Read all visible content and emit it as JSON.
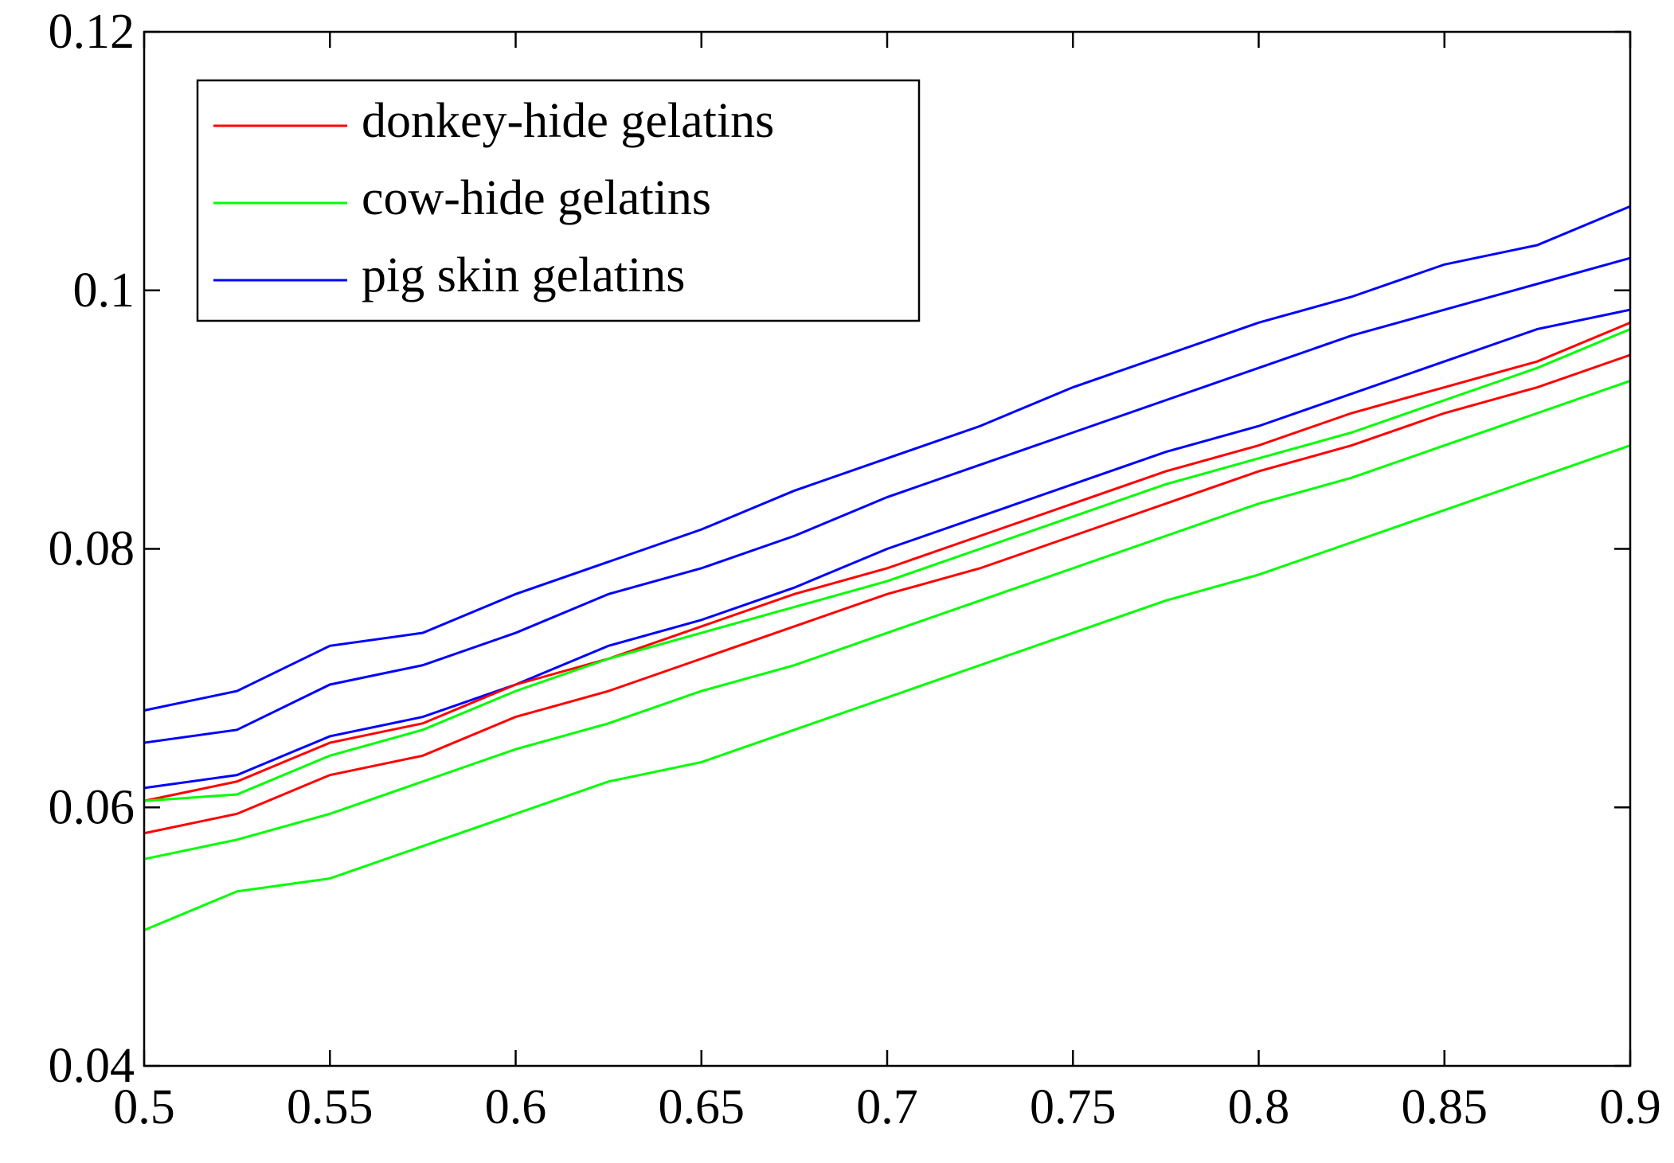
{
  "chart_data": {
    "type": "line",
    "x": [
      0.5,
      0.525,
      0.55,
      0.575,
      0.6,
      0.625,
      0.65,
      0.675,
      0.7,
      0.725,
      0.75,
      0.775,
      0.8,
      0.825,
      0.85,
      0.875,
      0.9
    ],
    "series": [
      {
        "name": "donkey-hide gelatins",
        "color": "#ff0000",
        "values": [
          [
            0.0605,
            0.062,
            0.065,
            0.0665,
            0.0695,
            0.0715,
            0.074,
            0.0765,
            0.0785,
            0.081,
            0.0835,
            0.086,
            0.088,
            0.0905,
            0.0925,
            0.0945,
            0.0975
          ],
          [
            0.058,
            0.0595,
            0.0625,
            0.064,
            0.067,
            0.069,
            0.0715,
            0.074,
            0.0765,
            0.0785,
            0.081,
            0.0835,
            0.086,
            0.088,
            0.0905,
            0.0925,
            0.095
          ]
        ]
      },
      {
        "name": "cow-hide gelatins",
        "color": "#00ff00",
        "values": [
          [
            0.0605,
            0.061,
            0.064,
            0.066,
            0.069,
            0.0715,
            0.0735,
            0.0755,
            0.0775,
            0.08,
            0.0825,
            0.085,
            0.087,
            0.089,
            0.0915,
            0.094,
            0.097
          ],
          [
            0.056,
            0.0575,
            0.0595,
            0.062,
            0.0645,
            0.0665,
            0.069,
            0.071,
            0.0735,
            0.076,
            0.0785,
            0.081,
            0.0835,
            0.0855,
            0.088,
            0.0905,
            0.093
          ],
          [
            0.0505,
            0.0535,
            0.0545,
            0.057,
            0.0595,
            0.062,
            0.0635,
            0.066,
            0.0685,
            0.071,
            0.0735,
            0.076,
            0.078,
            0.0805,
            0.083,
            0.0855,
            0.088
          ]
        ]
      },
      {
        "name": "pig skin gelatins",
        "color": "#0000ff",
        "values": [
          [
            0.0675,
            0.069,
            0.0725,
            0.0735,
            0.0765,
            0.079,
            0.0815,
            0.0845,
            0.087,
            0.0895,
            0.0925,
            0.095,
            0.0975,
            0.0995,
            0.102,
            0.1035,
            0.1065
          ],
          [
            0.065,
            0.066,
            0.0695,
            0.071,
            0.0735,
            0.0765,
            0.0785,
            0.081,
            0.084,
            0.0865,
            0.089,
            0.0915,
            0.094,
            0.0965,
            0.0985,
            0.1005,
            0.1025
          ],
          [
            0.0615,
            0.0625,
            0.0655,
            0.067,
            0.0695,
            0.0725,
            0.0745,
            0.077,
            0.08,
            0.0825,
            0.085,
            0.0875,
            0.0895,
            0.092,
            0.0945,
            0.097,
            0.0985
          ]
        ]
      }
    ],
    "xlim": [
      0.5,
      0.9
    ],
    "xticks": [
      0.5,
      0.55,
      0.6,
      0.65,
      0.7,
      0.75,
      0.8,
      0.85,
      0.9
    ],
    "ylim": [
      0.04,
      0.12
    ],
    "yticks": [
      0.04,
      0.06,
      0.08,
      0.1,
      0.12
    ],
    "grid": false,
    "legend": "upper left"
  }
}
